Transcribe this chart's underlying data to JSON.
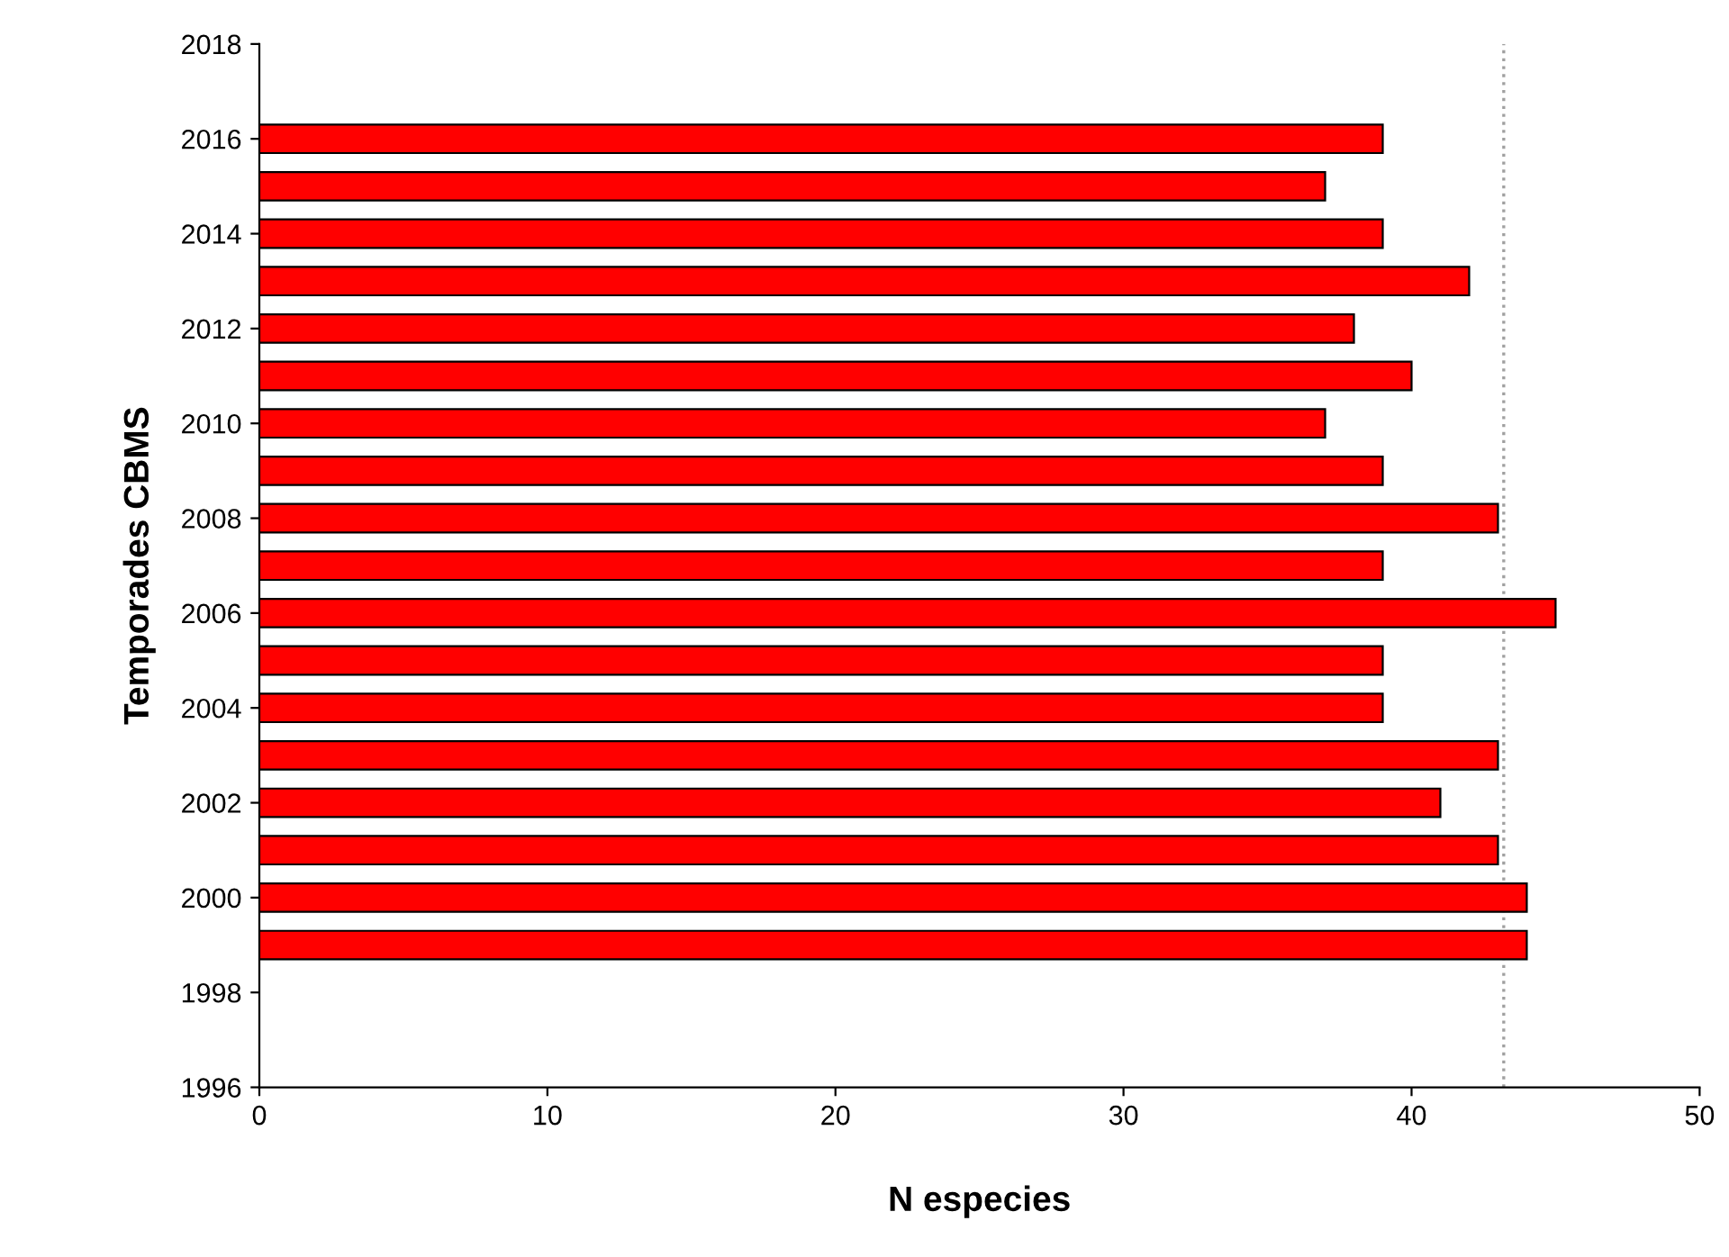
{
  "chart_data": {
    "type": "bar",
    "orientation": "horizontal",
    "xlabel": "N especies",
    "ylabel": "Temporades CBMS",
    "x": [
      2016,
      2015,
      2014,
      2013,
      2012,
      2011,
      2010,
      2009,
      2008,
      2007,
      2006,
      2005,
      2004,
      2003,
      2002,
      2001,
      2000,
      1999
    ],
    "values": [
      39,
      37,
      39,
      42,
      38,
      40,
      37,
      39,
      43,
      39,
      45,
      39,
      39,
      43,
      41,
      43,
      44,
      44
    ],
    "color": "#ff0000",
    "xlim": [
      0,
      50
    ],
    "xticks": [
      0,
      10,
      20,
      30,
      40,
      50
    ],
    "ylim": [
      1996,
      2018
    ],
    "yticks": [
      1996,
      1998,
      2000,
      2002,
      2004,
      2006,
      2008,
      2010,
      2012,
      2014,
      2016,
      2018
    ],
    "ref_lines": [
      {
        "axis": "x",
        "value": 43.2,
        "color": "#a0a0a0",
        "line_style": "dotted"
      }
    ],
    "grid": false
  }
}
